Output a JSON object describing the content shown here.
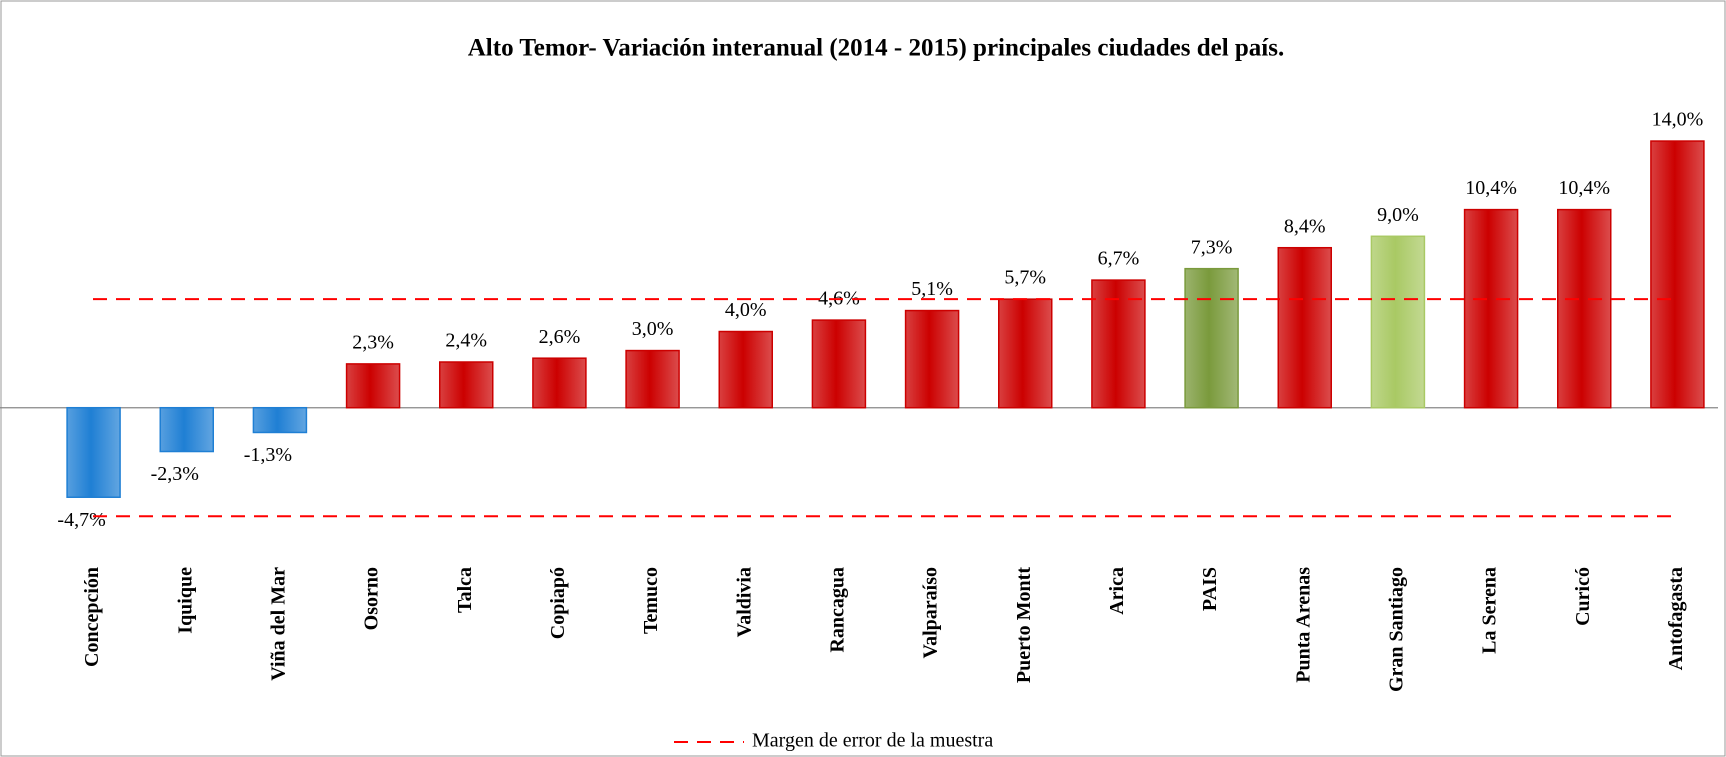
{
  "chart_data": {
    "type": "bar",
    "title": "Alto Temor- Variación interanual (2014 - 2015) principales ciudades del país.",
    "categories": [
      "Concepción",
      "Iquique",
      "Viña del Mar",
      "Osorno",
      "Talca",
      "Copiapó",
      "Temuco",
      "Valdivia",
      "Rancagua",
      "Valparaíso",
      "Puerto Montt",
      "Arica",
      "PAIS",
      "Punta Arenas",
      "Gran Santiago",
      "La Serena",
      "Curicó",
      "Antofagasta"
    ],
    "values": [
      -4.7,
      -2.3,
      -1.3,
      2.3,
      2.4,
      2.6,
      3.0,
      4.0,
      4.6,
      5.1,
      5.7,
      6.7,
      7.3,
      8.4,
      9.0,
      10.4,
      10.4,
      14.0
    ],
    "value_labels": [
      "-4,7%",
      "-2,3%",
      "-1,3%",
      "2,3%",
      "2,4%",
      "2,6%",
      "3,0%",
      "4,0%",
      "4,6%",
      "5,1%",
      "5,7%",
      "6,7%",
      "7,3%",
      "8,4%",
      "9,0%",
      "10,4%",
      "10,4%",
      "14,0%"
    ],
    "colors": [
      "#1f7fd4",
      "#1f7fd4",
      "#1f7fd4",
      "#cc0000",
      "#cc0000",
      "#cc0000",
      "#cc0000",
      "#cc0000",
      "#cc0000",
      "#cc0000",
      "#cc0000",
      "#cc0000",
      "#7a9a3c",
      "#cc0000",
      "#a9c964",
      "#cc0000",
      "#cc0000",
      "#cc0000"
    ],
    "ylim": [
      -6,
      15
    ],
    "error_margin": {
      "name": "Margen de error de la muestra",
      "values": [
        5.7,
        -5.7
      ],
      "color": "#ff0000"
    }
  }
}
